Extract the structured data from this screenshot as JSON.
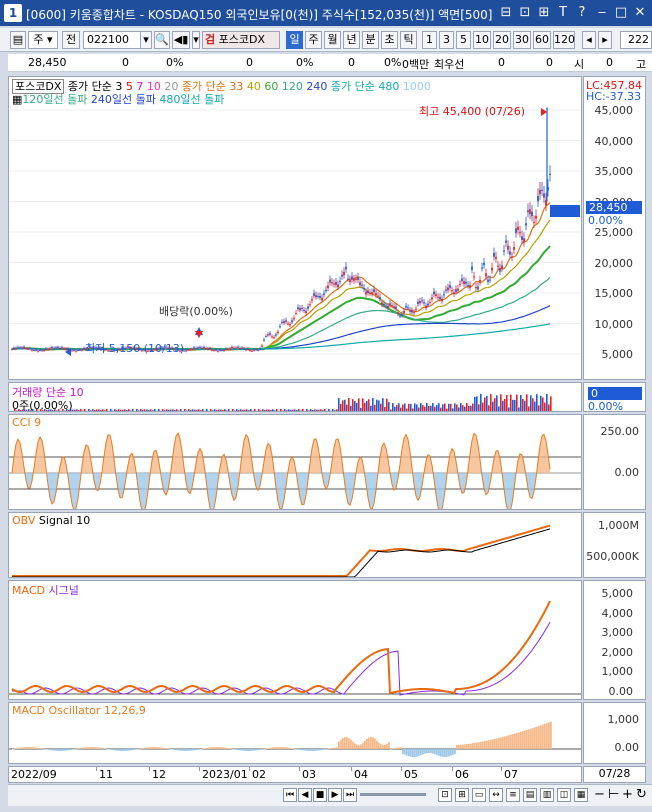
{
  "window": {
    "number": "1",
    "title": "[0600] 키움종합차트 - KOSDAQ150 외국인보유[0(천)] 주식수[152,035(천)] 액면[500]",
    "title_buttons": [
      "⊟",
      "⊡",
      "⊞",
      "T",
      "?",
      "‒",
      "□",
      "✕"
    ]
  },
  "toolbar": {
    "period_select": "주",
    "prev_label": "전",
    "code_value": "022100",
    "stock_name": "포스코DX",
    "timeframes": [
      "일",
      "주",
      "월",
      "년",
      "분",
      "초",
      "틱"
    ],
    "active_timeframe": "일",
    "intervals": [
      "1",
      "3",
      "5",
      "10",
      "20",
      "30",
      "60",
      "120"
    ],
    "count_value": "222"
  },
  "info_row": {
    "price": "28,450",
    "v1": "0",
    "p1": "0%",
    "v2": "0",
    "p2": "0%",
    "v3": "0",
    "p3": "0%",
    "v4": "0백만",
    "label_best": "최우선",
    "v5": "0",
    "v6": "0",
    "label_si": "시",
    "v7": "0",
    "label_go": "고"
  },
  "price_pane": {
    "stock_label": "포스코DX",
    "ma_label": "종가 단순",
    "ma_periods": [
      "3",
      "5",
      "7",
      "10",
      "20"
    ],
    "ma_label2": "종가 단순",
    "ma_periods2": [
      "33",
      "40",
      "60",
      "120",
      "240"
    ],
    "ma_label3": "종가 단순",
    "ma_periods3": [
      "480",
      "1000"
    ],
    "breakouts": [
      "120일선 돌파",
      "240일선 돌파",
      "480일선 돌파"
    ],
    "high_label": "최고 45,400 (07/26)",
    "low_label": "최저 5,150 (10/13)",
    "dividend_label": "배당락(0.00%)",
    "lc": "LC:457.84",
    "hc": "HC:-37.33",
    "current_price": "28,450",
    "current_pct": "0.00%",
    "yticks": [
      "45,000",
      "40,000",
      "35,000",
      "30,000",
      "25,000",
      "20,000",
      "15,000",
      "10,000",
      "5,000"
    ]
  },
  "volume_pane": {
    "title": "거래량",
    "ma": "단순 10",
    "sub": "0주(0.00%)",
    "axis_value": "0",
    "axis_pct": "0.00%"
  },
  "cci_pane": {
    "title": "CCI 9",
    "yticks": [
      "250.00",
      "0.00"
    ]
  },
  "obv_pane": {
    "title": "OBV",
    "signal": "Signal 10",
    "yticks": [
      "1,000M",
      "500,000K"
    ]
  },
  "macd_pane": {
    "title": "MACD",
    "signal": "시그널",
    "yticks": [
      "5,000",
      "4,000",
      "3,000",
      "2,000",
      "1,000",
      "0.00"
    ]
  },
  "osc_pane": {
    "title": "MACD Oscillator 12,26,9",
    "yticks": [
      "1,000",
      "0.00"
    ]
  },
  "x_axis": {
    "labels": [
      "2022/09",
      "11",
      "12",
      "2023/01",
      "02",
      "03",
      "04",
      "05",
      "06",
      "07"
    ],
    "end_label": "07/28"
  },
  "colors": {
    "up": "#e8202a",
    "down": "#1f5bd6",
    "cci": "#e87b1e",
    "macd": "#e86a10",
    "signal": "#8a2be2"
  }
}
